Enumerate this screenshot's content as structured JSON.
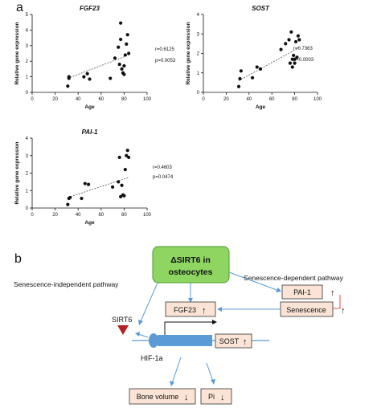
{
  "panel_a_label": "a",
  "panel_b_label": "b",
  "chart_data": [
    {
      "type": "scatter",
      "title": "FGF23",
      "xlabel": "Age",
      "ylabel": "Relative gene expression",
      "xlim": [
        0,
        100
      ],
      "ylim": [
        0,
        5
      ],
      "xticks": [
        0,
        20,
        40,
        60,
        80,
        100
      ],
      "yticks": [
        0,
        1,
        2,
        3,
        4,
        5
      ],
      "points": [
        [
          31,
          0.4
        ],
        [
          32,
          0.9
        ],
        [
          32,
          1.0
        ],
        [
          45,
          1.0
        ],
        [
          48,
          1.2
        ],
        [
          50,
          0.85
        ],
        [
          68,
          0.9
        ],
        [
          72,
          2.2
        ],
        [
          75,
          2.9
        ],
        [
          76,
          1.8
        ],
        [
          77,
          3.4
        ],
        [
          77,
          4.45
        ],
        [
          78,
          1.5
        ],
        [
          79,
          1.25
        ],
        [
          80,
          1.7
        ],
        [
          80,
          1.15
        ],
        [
          81,
          2.4
        ],
        [
          82,
          3.1
        ],
        [
          83,
          3.7
        ],
        [
          84,
          2.5
        ]
      ],
      "trend": [
        [
          31,
          0.9
        ],
        [
          84,
          2.4
        ]
      ],
      "stats": [
        "r=0.6125",
        "p=0.0053"
      ]
    },
    {
      "type": "scatter",
      "title": "SOST",
      "xlabel": "Age",
      "ylabel": "Relative gene expression",
      "xlim": [
        0,
        100
      ],
      "ylim": [
        0,
        4
      ],
      "xticks": [
        0,
        20,
        40,
        60,
        80,
        100
      ],
      "yticks": [
        0,
        1,
        2,
        3,
        4
      ],
      "points": [
        [
          31,
          0.3
        ],
        [
          32,
          0.7
        ],
        [
          33,
          1.1
        ],
        [
          43,
          0.75
        ],
        [
          47,
          1.3
        ],
        [
          50,
          1.2
        ],
        [
          68,
          2.2
        ],
        [
          72,
          2.5
        ],
        [
          75,
          2.7
        ],
        [
          76,
          1.5
        ],
        [
          77,
          3.1
        ],
        [
          78,
          1.3
        ],
        [
          78,
          1.7
        ],
        [
          79,
          1.9
        ],
        [
          80,
          1.5
        ],
        [
          80,
          1.7
        ],
        [
          81,
          2.6
        ],
        [
          82,
          1.8
        ],
        [
          83,
          2.9
        ],
        [
          84,
          2.7
        ]
      ],
      "trend": [
        [
          31,
          0.6
        ],
        [
          84,
          2.3
        ]
      ],
      "stats": [
        "r=0.7363",
        "p=0.0003"
      ]
    },
    {
      "type": "scatter",
      "title": "PAI-1",
      "xlabel": "Age",
      "ylabel": "Relative gene expression",
      "xlim": [
        0,
        100
      ],
      "ylim": [
        0,
        4
      ],
      "xticks": [
        0,
        20,
        40,
        60,
        80,
        100
      ],
      "yticks": [
        0,
        1,
        2,
        3,
        4
      ],
      "points": [
        [
          31,
          0.2
        ],
        [
          32,
          0.55
        ],
        [
          33,
          0.6
        ],
        [
          43,
          0.55
        ],
        [
          46,
          1.4
        ],
        [
          49,
          1.35
        ],
        [
          70,
          1.2
        ],
        [
          75,
          1.5
        ],
        [
          76,
          2.9
        ],
        [
          77,
          0.65
        ],
        [
          78,
          1.3
        ],
        [
          79,
          0.75
        ],
        [
          80,
          0.7
        ],
        [
          81,
          2.2
        ],
        [
          82,
          3.0
        ],
        [
          83,
          3.3
        ],
        [
          84,
          2.9
        ]
      ],
      "trend": [
        [
          31,
          0.6
        ],
        [
          84,
          1.75
        ]
      ],
      "stats": [
        "r=0.4603",
        "p=0.0474"
      ]
    }
  ],
  "diagram": {
    "center_box": [
      "ΔSIRT6 in",
      "osteocytes"
    ],
    "left_pathway": "Senescence-independent pathway",
    "right_pathway": "Senescence-dependent pathway",
    "pai1": "PAI-1",
    "senescence": "Senescence",
    "fgf23": "FGF23",
    "sost": "SOST",
    "sirt6": "SIRT6",
    "hif": "HIF-1a",
    "bone_volume": "Bone volume",
    "pi": "Pi",
    "up_arrow": "↑",
    "down_arrow": "↓",
    "colors": {
      "green_box": "#8ed562",
      "green_border": "#4e9a2e",
      "peach": "#fbe4d5",
      "blue": "#5b9bd5",
      "red": "#e0201b",
      "sirt6_mark": "#b22222"
    }
  }
}
